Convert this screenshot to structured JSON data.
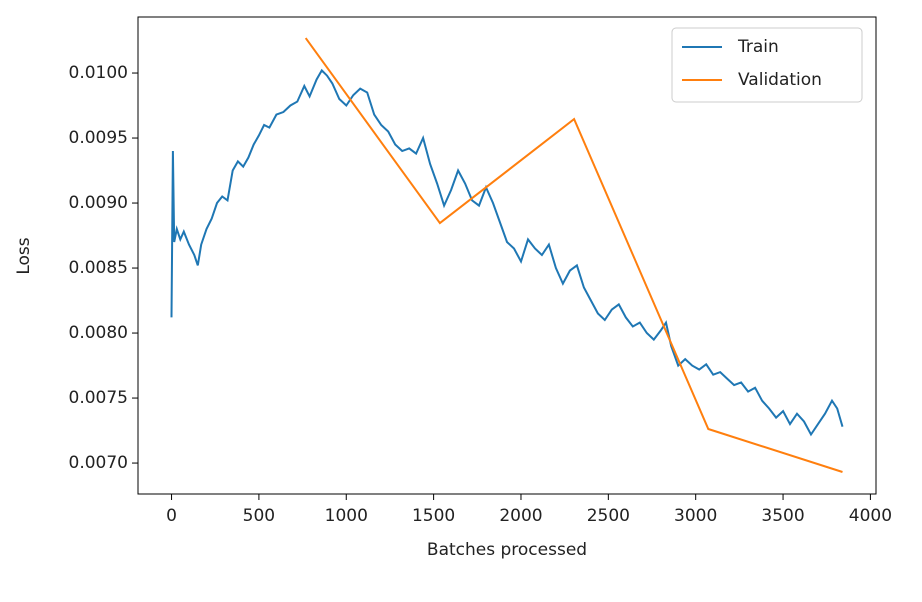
{
  "chart_data": {
    "type": "line",
    "xlabel": "Batches processed",
    "ylabel": "Loss",
    "xlim": [
      -192,
      4032
    ],
    "ylim": [
      0.006762,
      0.010431
    ],
    "xticks": [
      0,
      500,
      1000,
      1500,
      2000,
      2500,
      3000,
      3500,
      4000
    ],
    "yticks": [
      {
        "value": 0.007,
        "label": "0.0070"
      },
      0.0075,
      {
        "value": 0.008,
        "label": "0.0080"
      },
      0.0085,
      {
        "value": 0.009,
        "label": "0.0090"
      },
      0.0095,
      {
        "value": 0.01,
        "label": "0.0100"
      }
    ],
    "legend": "upper right",
    "series": [
      {
        "name": "Train",
        "color": "#1f77b4",
        "x": [
          0,
          8,
          15,
          30,
          50,
          70,
          100,
          130,
          150,
          170,
          200,
          230,
          260,
          290,
          320,
          350,
          380,
          410,
          440,
          470,
          500,
          530,
          560,
          600,
          640,
          680,
          720,
          760,
          790,
          830,
          860,
          890,
          920,
          960,
          1000,
          1040,
          1080,
          1120,
          1160,
          1200,
          1240,
          1280,
          1320,
          1360,
          1400,
          1440,
          1480,
          1520,
          1560,
          1600,
          1640,
          1680,
          1720,
          1760,
          1800,
          1840,
          1880,
          1920,
          1960,
          2000,
          2040,
          2080,
          2120,
          2160,
          2200,
          2240,
          2280,
          2320,
          2360,
          2400,
          2440,
          2480,
          2520,
          2560,
          2600,
          2640,
          2680,
          2720,
          2760,
          2800,
          2830,
          2860,
          2900,
          2940,
          2980,
          3020,
          3060,
          3100,
          3140,
          3180,
          3220,
          3260,
          3300,
          3340,
          3380,
          3420,
          3460,
          3500,
          3540,
          3580,
          3620,
          3660,
          3700,
          3740,
          3780,
          3810,
          3840
        ],
        "values": [
          0.00812,
          0.0094,
          0.0087,
          0.0088,
          0.00872,
          0.00878,
          0.00868,
          0.0086,
          0.00852,
          0.00868,
          0.0088,
          0.00888,
          0.009,
          0.00905,
          0.00902,
          0.00925,
          0.00932,
          0.00928,
          0.00935,
          0.00945,
          0.00952,
          0.0096,
          0.00958,
          0.00968,
          0.0097,
          0.00975,
          0.00978,
          0.0099,
          0.00982,
          0.00995,
          0.01002,
          0.00998,
          0.00992,
          0.0098,
          0.00975,
          0.00983,
          0.00988,
          0.00985,
          0.00968,
          0.0096,
          0.00955,
          0.00945,
          0.0094,
          0.00942,
          0.00938,
          0.0095,
          0.0093,
          0.00915,
          0.00898,
          0.0091,
          0.00925,
          0.00915,
          0.00902,
          0.00898,
          0.00912,
          0.009,
          0.00885,
          0.0087,
          0.00865,
          0.00855,
          0.00872,
          0.00865,
          0.0086,
          0.00868,
          0.0085,
          0.00838,
          0.00848,
          0.00852,
          0.00835,
          0.00825,
          0.00815,
          0.0081,
          0.00818,
          0.00822,
          0.00812,
          0.00805,
          0.00808,
          0.008,
          0.00795,
          0.00802,
          0.00808,
          0.0079,
          0.00775,
          0.0078,
          0.00775,
          0.00772,
          0.00776,
          0.00768,
          0.0077,
          0.00765,
          0.0076,
          0.00762,
          0.00755,
          0.00758,
          0.00748,
          0.00742,
          0.00735,
          0.0074,
          0.0073,
          0.00738,
          0.00732,
          0.00722,
          0.0073,
          0.00738,
          0.00748,
          0.00742,
          0.00728
        ]
      },
      {
        "name": "Validation",
        "color": "#ff7f0e",
        "x": [
          768,
          1536,
          2304,
          3072,
          3840
        ],
        "values": [
          0.010269,
          0.008846,
          0.009646,
          0.007262,
          0.006931
        ]
      }
    ]
  }
}
